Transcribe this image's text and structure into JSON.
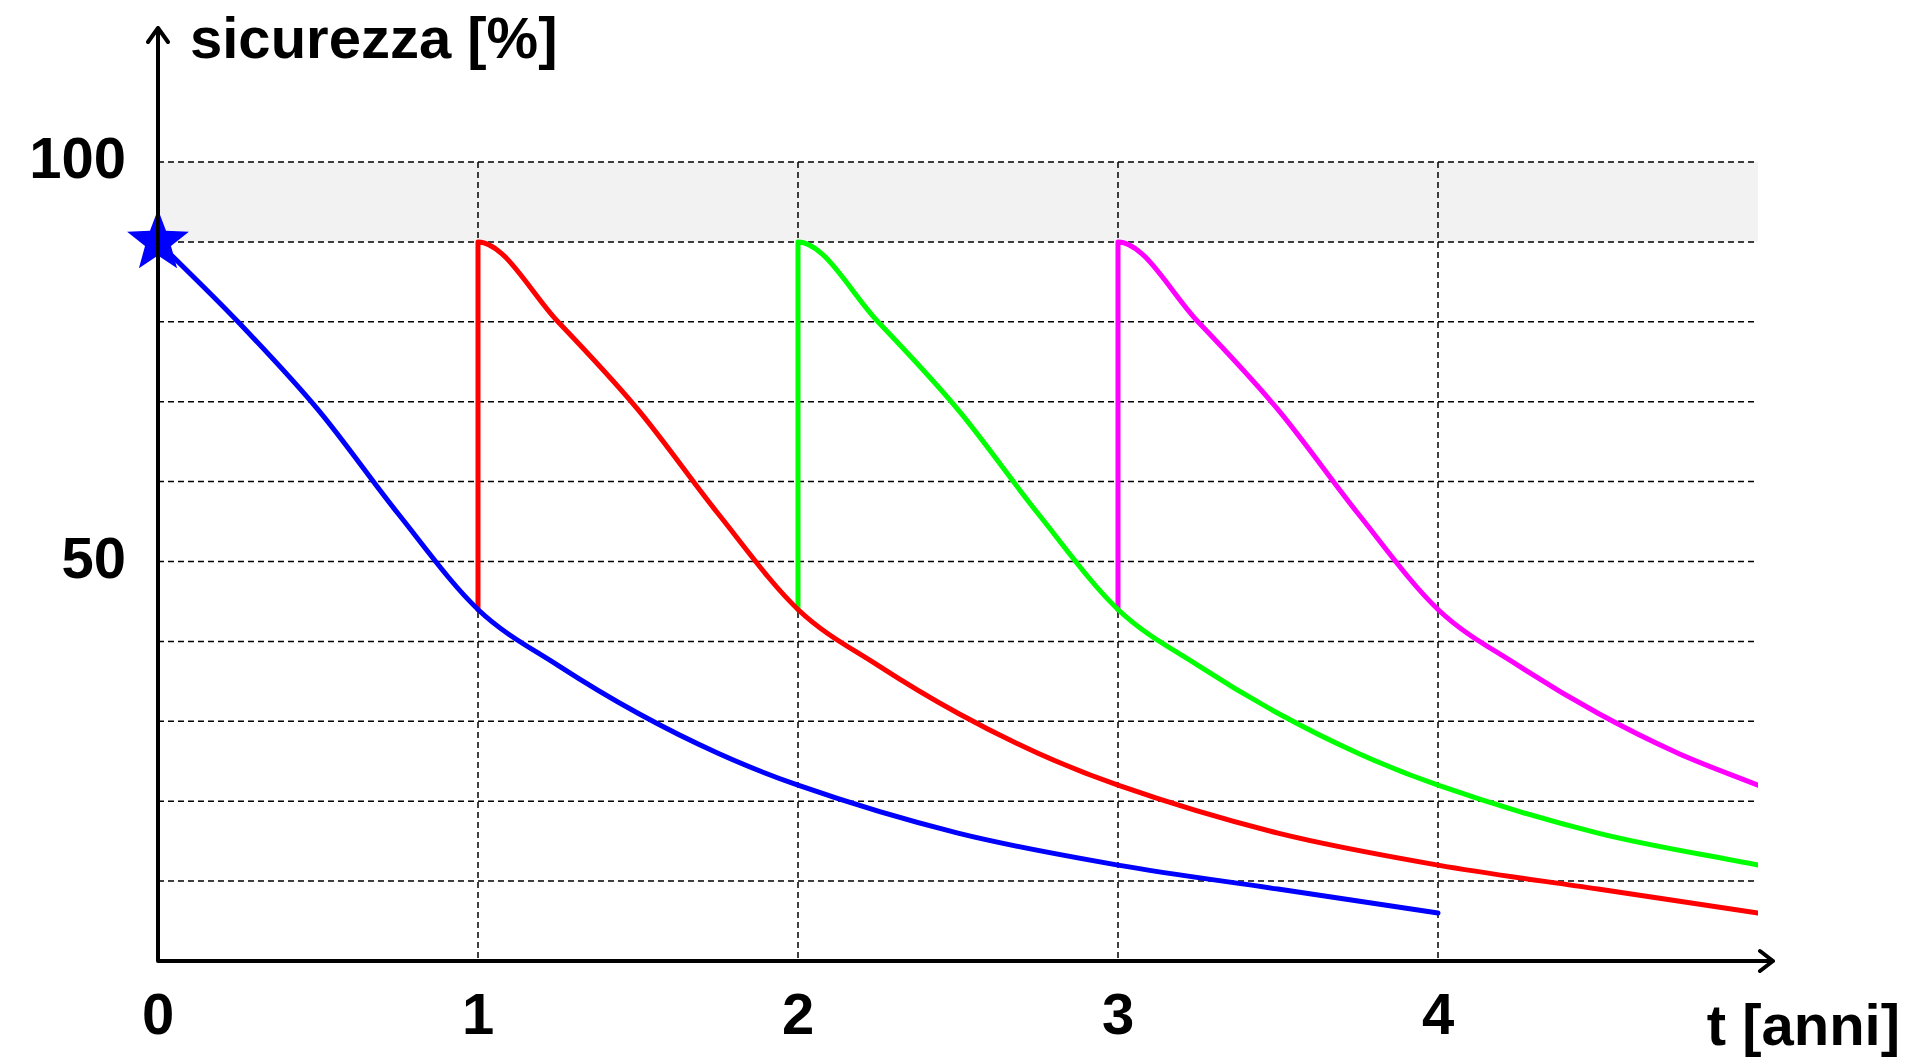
{
  "chart_data": {
    "type": "line",
    "xlabel": "t [anni]",
    "ylabel": "sicurezza [%]",
    "xlim": [
      0,
      5
    ],
    "xticks": [
      0,
      1,
      2,
      3,
      4
    ],
    "ylim": [
      0,
      100
    ],
    "yticks": [
      {
        "value": 10,
        "label": null
      },
      {
        "value": 20,
        "label": null
      },
      {
        "value": 30,
        "label": null
      },
      {
        "value": 40,
        "label": null
      },
      50,
      {
        "value": 60,
        "label": null
      },
      {
        "value": 70,
        "label": null
      },
      {
        "value": 80,
        "label": null
      },
      {
        "value": 90,
        "label": null
      },
      100
    ],
    "grid": true,
    "legend": false,
    "line_style": "solid",
    "marker": "none",
    "bands": [
      {
        "axis": "y",
        "from": 90,
        "to": 100,
        "color": "#f2f2f2"
      }
    ],
    "series": [
      {
        "color": "#0000ff",
        "x": [
          0,
          0.25,
          0.5,
          0.75,
          1,
          1.25,
          1.5,
          1.75,
          2,
          2.5,
          3,
          3.5,
          4
        ],
        "values": [
          90,
          80,
          69,
          56,
          44,
          37,
          31,
          26,
          22,
          16,
          12,
          9,
          6
        ]
      },
      {
        "color": "#ff0000",
        "x": [
          1,
          1,
          1.25,
          1.5,
          1.75,
          2,
          2.25,
          2.5,
          2.75,
          3,
          3.5,
          4,
          4.5,
          5
        ],
        "values": [
          44,
          90,
          80,
          69,
          56,
          44,
          37,
          31,
          26,
          22,
          16,
          12,
          9,
          6
        ]
      },
      {
        "color": "#00ff00",
        "x": [
          2,
          2,
          2.25,
          2.5,
          2.75,
          3,
          3.25,
          3.5,
          3.75,
          4,
          4.5,
          5
        ],
        "values": [
          44,
          90,
          80,
          69,
          56,
          44,
          37,
          31,
          26,
          22,
          16,
          12
        ]
      },
      {
        "color": "#ff00ff",
        "x": [
          3,
          3,
          3.25,
          3.5,
          3.75,
          4,
          4.25,
          4.5,
          4.75,
          5
        ],
        "values": [
          44,
          90,
          80,
          69,
          56,
          44,
          37,
          31,
          26,
          22
        ]
      },
      {
        "type": "scatter",
        "color": "#0000ff",
        "marker": "star",
        "x": [
          0
        ],
        "values": [
          90
        ]
      }
    ]
  }
}
